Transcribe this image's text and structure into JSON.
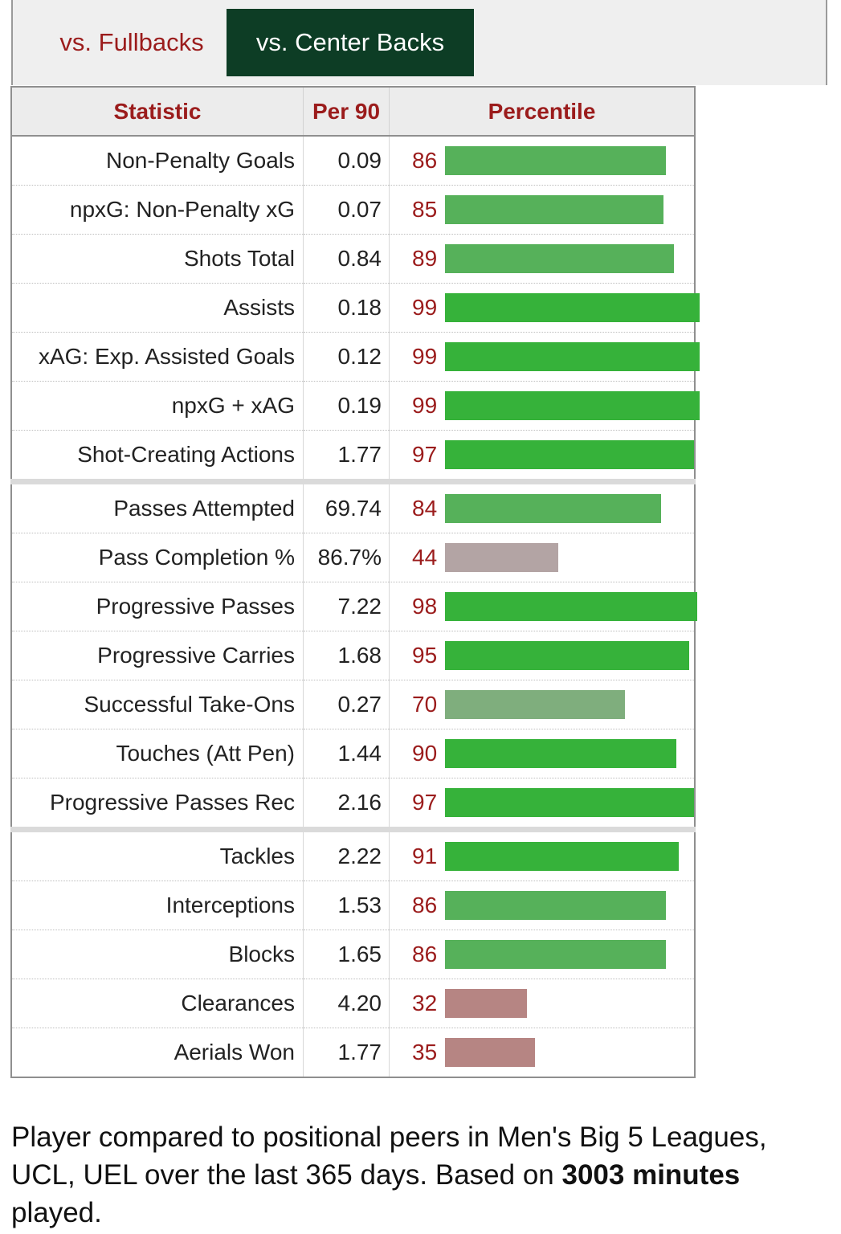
{
  "tabs": [
    {
      "label": "vs. Fullbacks",
      "active": false
    },
    {
      "label": "vs. Center Backs",
      "active": true
    }
  ],
  "columns": {
    "statistic": "Statistic",
    "per90": "Per 90",
    "percentile": "Percentile"
  },
  "colors": {
    "elite": "#36b23a",
    "good": "#56b15a",
    "above_avg": "#7fae7d",
    "average": "#b3a4a4",
    "below_avg": "#b68583",
    "header_text": "#9b1c1c",
    "active_tab": "#0d3d25"
  },
  "chart_data": {
    "type": "bar",
    "xlim": [
      0,
      100
    ],
    "groups": [
      {
        "rows": [
          {
            "stat": "Non-Penalty Goals",
            "per90": "0.09",
            "percentile": 86
          },
          {
            "stat": "npxG: Non-Penalty xG",
            "per90": "0.07",
            "percentile": 85
          },
          {
            "stat": "Shots Total",
            "per90": "0.84",
            "percentile": 89
          },
          {
            "stat": "Assists",
            "per90": "0.18",
            "percentile": 99
          },
          {
            "stat": "xAG: Exp. Assisted Goals",
            "per90": "0.12",
            "percentile": 99
          },
          {
            "stat": "npxG + xAG",
            "per90": "0.19",
            "percentile": 99
          },
          {
            "stat": "Shot-Creating Actions",
            "per90": "1.77",
            "percentile": 97
          }
        ]
      },
      {
        "rows": [
          {
            "stat": "Passes Attempted",
            "per90": "69.74",
            "percentile": 84
          },
          {
            "stat": "Pass Completion %",
            "per90": "86.7%",
            "percentile": 44
          },
          {
            "stat": "Progressive Passes",
            "per90": "7.22",
            "percentile": 98
          },
          {
            "stat": "Progressive Carries",
            "per90": "1.68",
            "percentile": 95
          },
          {
            "stat": "Successful Take-Ons",
            "per90": "0.27",
            "percentile": 70
          },
          {
            "stat": "Touches (Att Pen)",
            "per90": "1.44",
            "percentile": 90
          },
          {
            "stat": "Progressive Passes Rec",
            "per90": "2.16",
            "percentile": 97
          }
        ]
      },
      {
        "rows": [
          {
            "stat": "Tackles",
            "per90": "2.22",
            "percentile": 91
          },
          {
            "stat": "Interceptions",
            "per90": "1.53",
            "percentile": 86
          },
          {
            "stat": "Blocks",
            "per90": "1.65",
            "percentile": 86
          },
          {
            "stat": "Clearances",
            "per90": "4.20",
            "percentile": 32
          },
          {
            "stat": "Aerials Won",
            "per90": "1.77",
            "percentile": 35
          }
        ]
      }
    ]
  },
  "footnote": {
    "prefix": "Player compared to positional peers in Men's Big 5 Leagues, UCL, UEL over the last 365 days. Based on ",
    "minutes": "3003 minutes",
    "suffix": " played."
  }
}
